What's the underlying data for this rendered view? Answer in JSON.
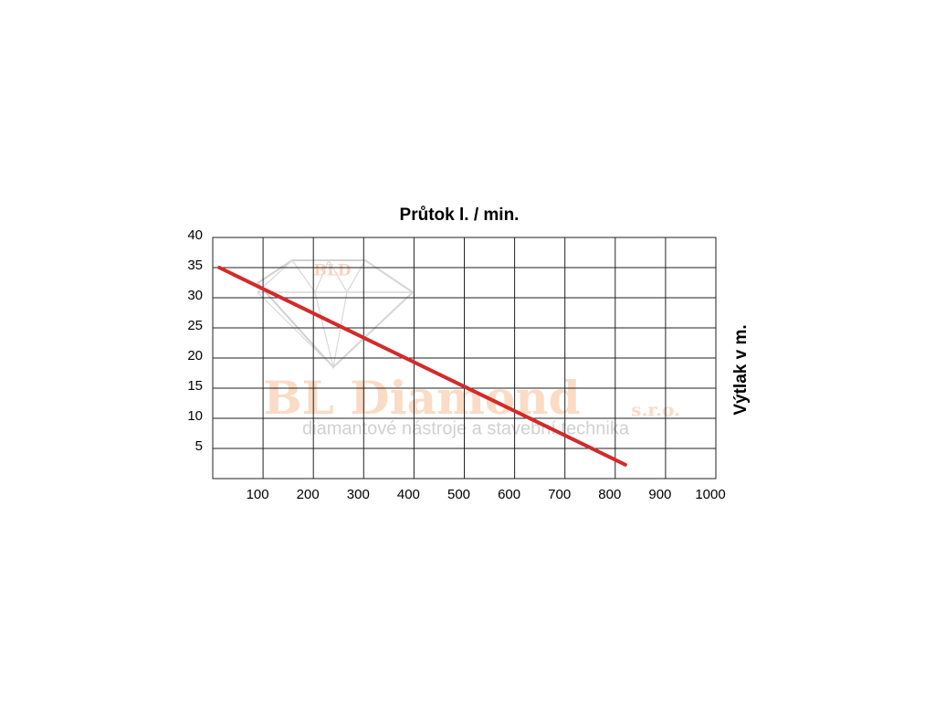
{
  "chart_data": {
    "type": "line",
    "title": "Průtok l. / min.",
    "y_label": "Výtlak v m.",
    "x": [
      13,
      820
    ],
    "values": [
      35,
      2.3
    ],
    "color": "#d42a2a",
    "xlim": [
      0,
      1000
    ],
    "ylim": [
      0,
      40
    ],
    "xticks": [
      100,
      200,
      300,
      400,
      500,
      600,
      700,
      800,
      900,
      1000
    ],
    "yticks": [
      5,
      10,
      15,
      20,
      25,
      30,
      35,
      40
    ],
    "grid": true,
    "watermark": {
      "logo": "BLD",
      "name": "BL Diamond",
      "suffix": "s.r.o.",
      "tagline": "diamantové nástroje a stavební technika"
    }
  }
}
